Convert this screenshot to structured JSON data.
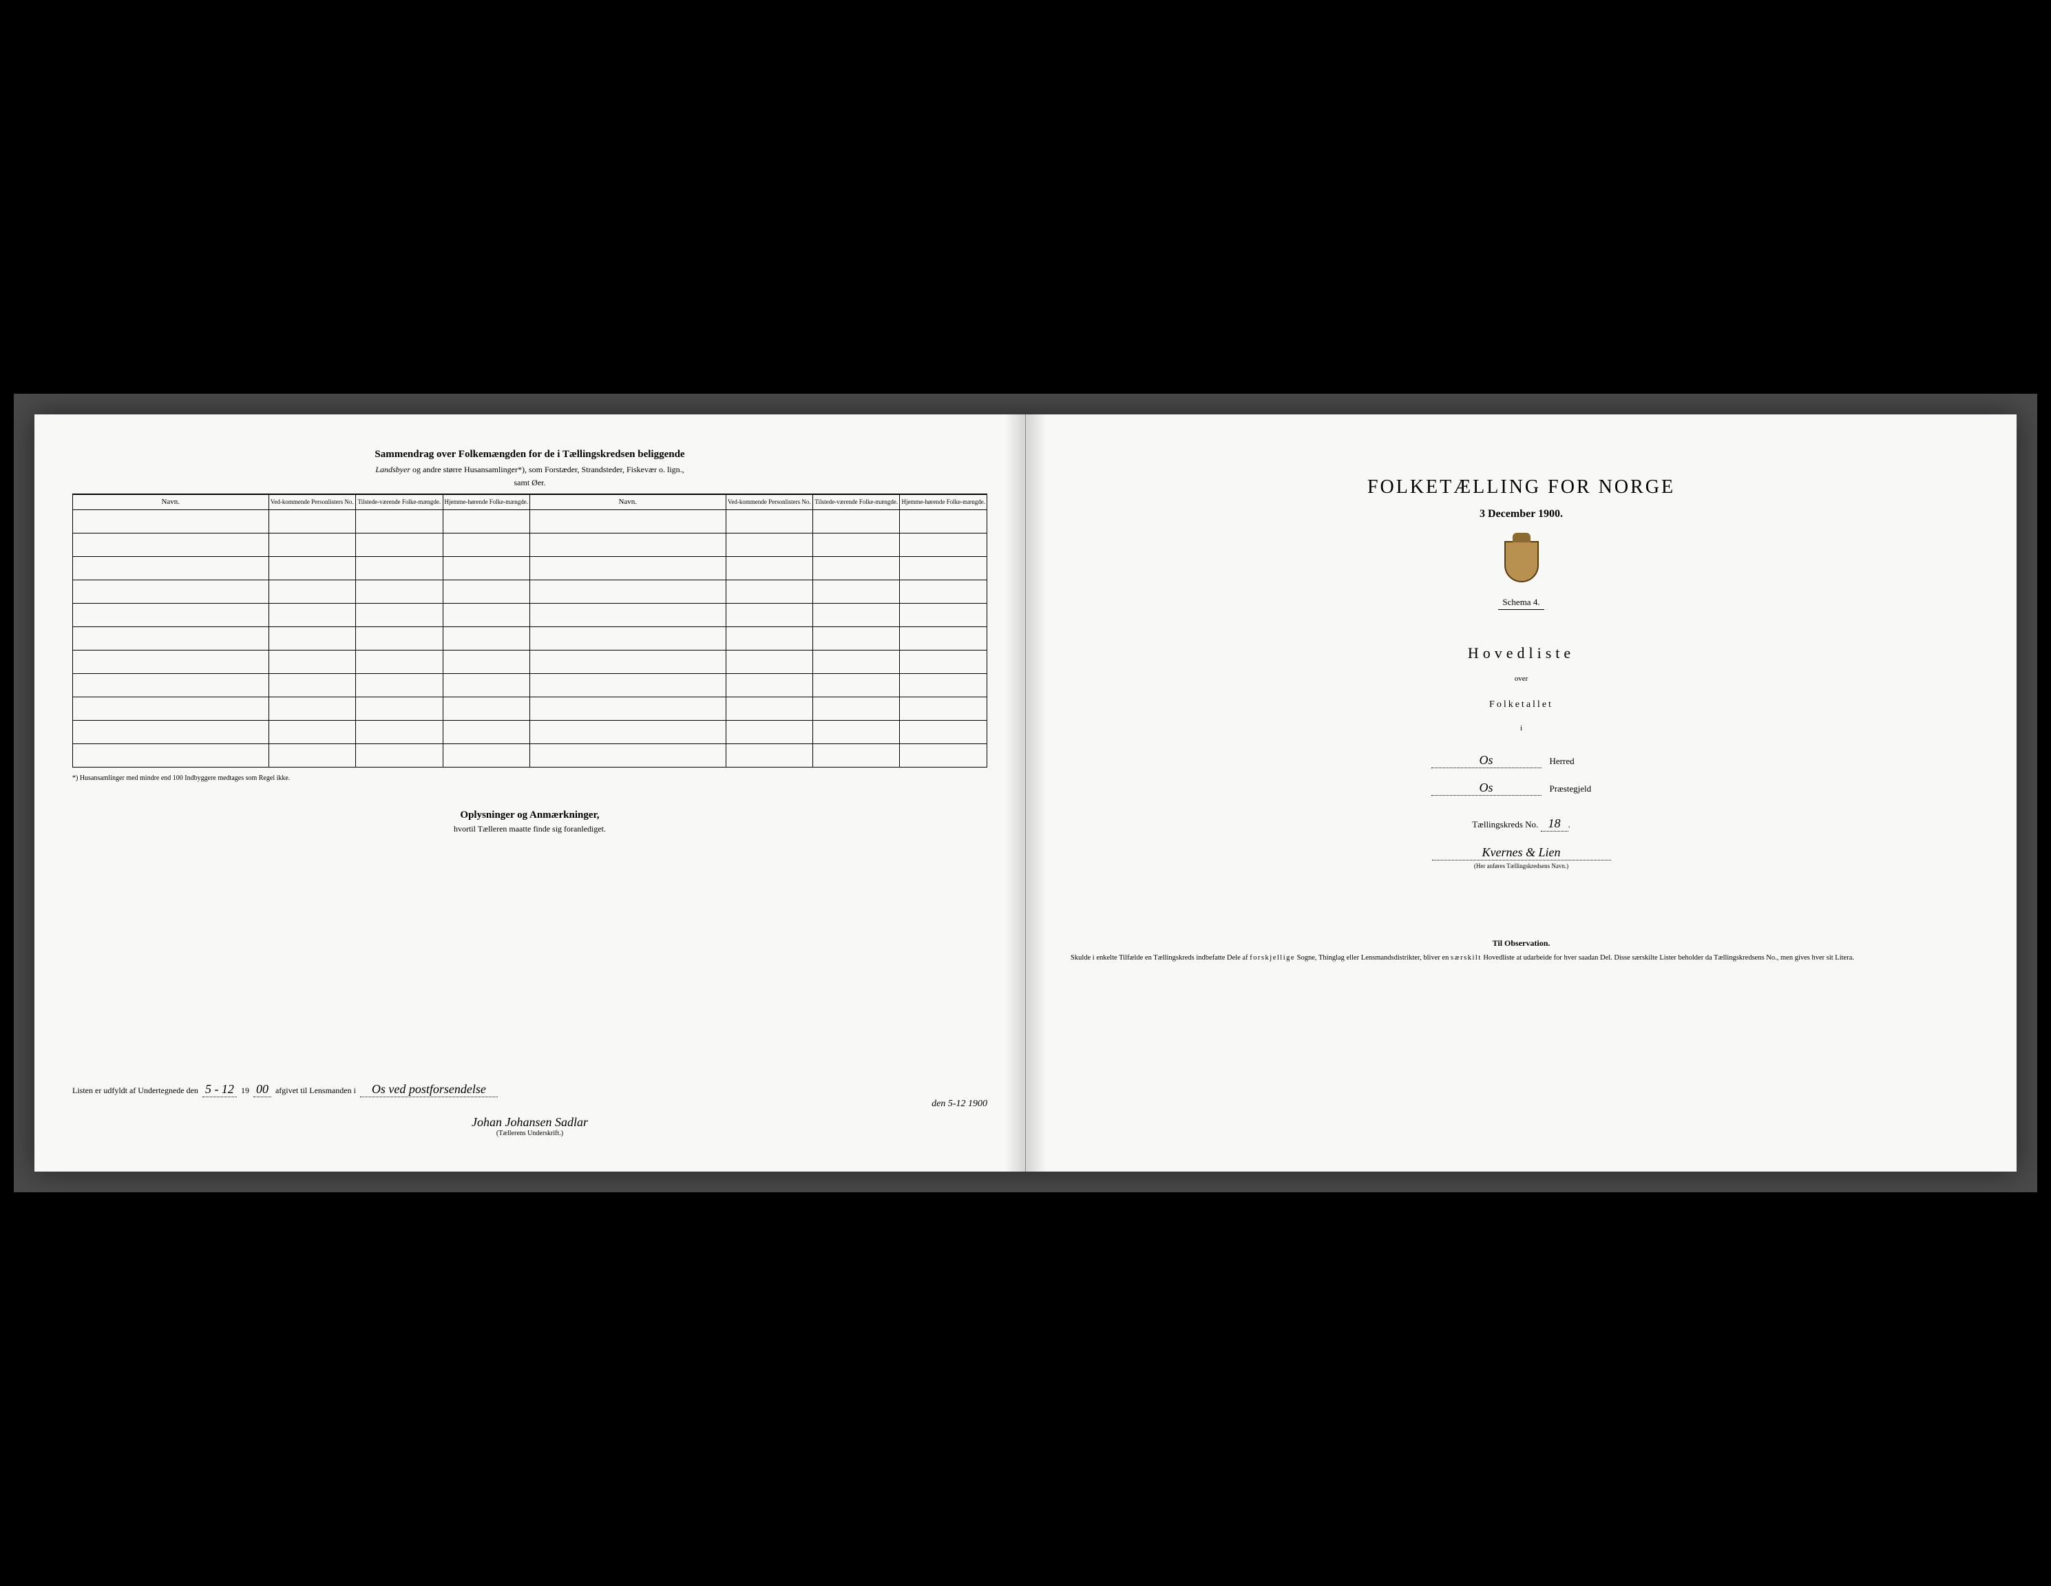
{
  "left": {
    "summary_title": "Sammendrag over Folkemængden for de i Tællingskredsen beliggende",
    "summary_sub_1_italic": "Landsbyer",
    "summary_sub_1_rest": " og andre større Husansamlinger*), som Forstæder, Strandsteder, Fiskevær o. lign.,",
    "summary_sub_2": "samt Øer.",
    "col_navn": "Navn.",
    "col_ved": "Ved-kommende Personlisters No.",
    "col_tilstede": "Tilstede-værende Folke-mængde.",
    "col_hjemme": "Hjemme-hørende Folke-mængde.",
    "footnote": "*) Husansamlinger med mindre end 100 Indbyggere medtages som Regel ikke.",
    "oplys_title": "Oplysninger og Anmærkninger,",
    "oplys_sub": "hvortil Tælleren maatte finde sig foranlediget.",
    "sig_prefix": "Listen er udfyldt af Undertegnede den",
    "sig_date_day": "5 - 12",
    "sig_date_year_prefix": "19",
    "sig_date_year": "00",
    "sig_mid": "afgivet til Lensmanden i",
    "sig_place": "Os  ved postforsendelse",
    "sig_extra_line": "den 5-12 1900",
    "sig_name": "Johan Johansen Sadlar",
    "sig_caption": "(Tællerens Underskrift.)",
    "blank_rows": 11
  },
  "right": {
    "title": "FOLKETÆLLING FOR NORGE",
    "date": "3 December 1900.",
    "schema": "Schema 4.",
    "hovedliste": "Hovedliste",
    "over": "over",
    "folketallet": "Folketallet",
    "i": "i",
    "herred_value": "Os",
    "herred_label": "Herred",
    "prestegjeld_value": "Os",
    "prestegjeld_label": "Præstegjeld",
    "kreds_prefix": "Tællingskreds No.",
    "kreds_no": "18",
    "kreds_name": "Kvernes & Lien",
    "kreds_caption": "(Her anføres Tællingskredsens Navn.)",
    "obs_title": "Til Observation.",
    "obs_text": "Skulde i enkelte Tilfælde en Tællingskreds indbefatte Dele af forskjellige Sogne, Thinglag eller Lensmandsdistrikter, bliver en særskilt Hovedliste at udarbeide for hver saadan Del. Disse særskilte Lister beholder da Tællingskredsens No., men gives hver sit Litera.",
    "obs_spaced_1": "forskjellige",
    "obs_spaced_2": "særskilt"
  },
  "style": {
    "page_bg": "#f8f8f6",
    "frame_bg": "#4a4a4a",
    "table_rows": 11
  }
}
